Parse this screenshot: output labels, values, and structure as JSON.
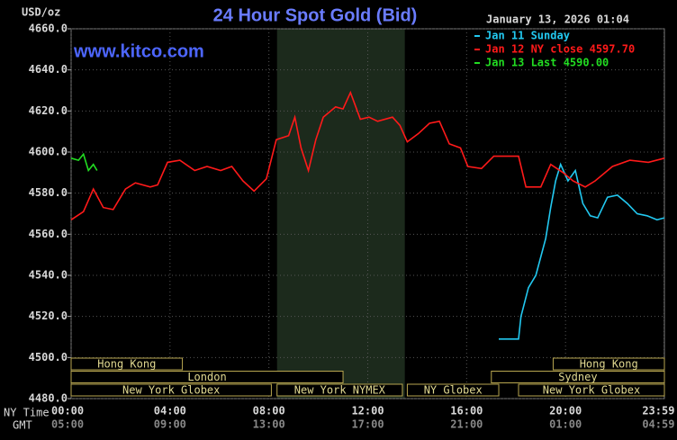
{
  "chart_data": {
    "type": "line",
    "title": "24 Hour Spot Gold (Bid)",
    "subtitle": "January 13, 2026 01:04",
    "watermark": "www.kitco.com",
    "y_label": "USD/oz",
    "x_label": "NY Time",
    "x2_label": "GMT",
    "xlim": [
      0,
      24
    ],
    "ylim": [
      4480,
      4660
    ],
    "yticks": [
      {
        "value": 4480,
        "label": "4480.0"
      },
      {
        "value": 4500,
        "label": "4500.0"
      },
      {
        "value": 4520,
        "label": "4520.0"
      },
      {
        "value": 4540,
        "label": "4540.0"
      },
      {
        "value": 4560,
        "label": "4560.0"
      },
      {
        "value": 4580,
        "label": "4580.0"
      },
      {
        "value": 4600,
        "label": "4600.0"
      },
      {
        "value": 4620,
        "label": "4620.0"
      },
      {
        "value": 4640,
        "label": "4640.0"
      },
      {
        "value": 4660,
        "label": "4660.0"
      }
    ],
    "xticks": [
      {
        "value": 0,
        "label": "00:00"
      },
      {
        "value": 4,
        "label": "04:00"
      },
      {
        "value": 8,
        "label": "08:00"
      },
      {
        "value": 12,
        "label": "12:00"
      },
      {
        "value": 16,
        "label": "16:00"
      },
      {
        "value": 20,
        "label": "20:00"
      },
      {
        "value": 23.98,
        "label": "23:59"
      }
    ],
    "x2ticks": [
      "05:00",
      "09:00",
      "13:00",
      "17:00",
      "21:00",
      "01:00",
      "04:59"
    ],
    "grid": true,
    "shaded_region": [
      8.33,
      13.5
    ],
    "series": [
      {
        "name": "Jan 11 Sunday",
        "color": "#22c8f0",
        "x": [
          17.3,
          18.1,
          18.2,
          18.5,
          18.8,
          19.2,
          19.4,
          19.6,
          19.8,
          20.1,
          20.4,
          20.7,
          21.0,
          21.3,
          21.7,
          22.1,
          22.5,
          22.9,
          23.3,
          23.7,
          24
        ],
        "values": [
          4509,
          4509,
          4520,
          4534,
          4540,
          4558,
          4573,
          4586,
          4594,
          4586,
          4591,
          4575,
          4569,
          4568,
          4578,
          4579,
          4575,
          4570,
          4569,
          4567,
          4568
        ]
      },
      {
        "name": "Jan 12 NY close 4597.70",
        "color": "#ff1a1a",
        "x": [
          0,
          0.5,
          0.9,
          1.3,
          1.7,
          2.2,
          2.6,
          3.2,
          3.5,
          3.9,
          4.4,
          5.0,
          5.5,
          6.05,
          6.5,
          6.95,
          7.4,
          7.9,
          8.3,
          8.8,
          9.05,
          9.3,
          9.6,
          9.9,
          10.2,
          10.7,
          11.0,
          11.3,
          11.7,
          12.05,
          12.4,
          13.0,
          13.3,
          13.6,
          14.05,
          14.5,
          14.9,
          15.3,
          15.75,
          16.05,
          16.6,
          17.1,
          17.5,
          18.1,
          18.4,
          19.0,
          19.4,
          19.9,
          20.3,
          20.8,
          21.2,
          21.9,
          22.6,
          23.35,
          24
        ],
        "values": [
          4567,
          4571,
          4582,
          4573,
          4572,
          4582,
          4585,
          4583,
          4584,
          4595,
          4596,
          4591,
          4593,
          4591,
          4593,
          4586,
          4581,
          4587,
          4606,
          4608,
          4617,
          4602,
          4591,
          4606,
          4617,
          4622,
          4621,
          4629,
          4616,
          4617,
          4615,
          4617,
          4613,
          4605,
          4609,
          4614,
          4615,
          4604,
          4602,
          4593,
          4592,
          4598,
          4598,
          4598,
          4583,
          4583,
          4594,
          4590,
          4586,
          4583,
          4586,
          4593,
          4596,
          4595,
          4597
        ]
      },
      {
        "name": "Jan 13 Last 4590.00",
        "color": "#22dd22",
        "x": [
          0,
          0.3,
          0.5,
          0.7,
          0.9,
          1.05
        ],
        "values": [
          4597,
          4596,
          4599,
          4591,
          4594,
          4591
        ]
      }
    ],
    "sessions": [
      [
        {
          "label": "Hong Kong",
          "start": 0,
          "end": 4.5
        },
        {
          "label": "Hong Kong",
          "start": 19.5,
          "end": 24
        }
      ],
      [
        {
          "label": "London",
          "start": 0,
          "end": 11
        },
        {
          "label": "Sydney",
          "start": 17,
          "end": 24
        }
      ],
      [
        {
          "label": "New York Globex",
          "start": 0,
          "end": 8.1
        },
        {
          "label": "New York NYMEX",
          "start": 8.33,
          "end": 13.4
        },
        {
          "label": "NY Globex",
          "start": 13.6,
          "end": 17.3
        },
        {
          "label": "New York Globex",
          "start": 18.1,
          "end": 24
        }
      ]
    ]
  }
}
